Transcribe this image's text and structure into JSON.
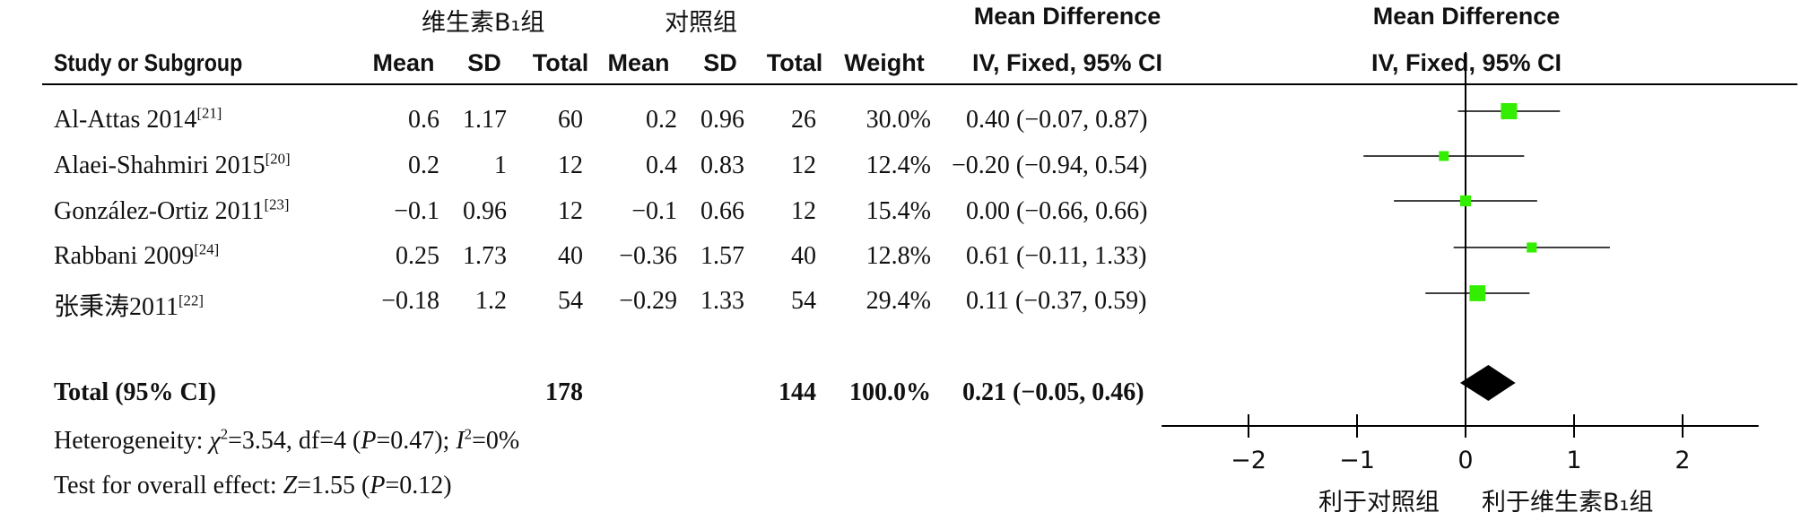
{
  "group_headers": {
    "treatment": "维生素B₁组",
    "control": "对照组"
  },
  "md_header": {
    "line1": "Mean Difference",
    "line2": "IV, Fixed, 95% CI"
  },
  "plot_header": {
    "line1": "Mean Difference",
    "line2": "IV, Fixed, 95% CI"
  },
  "columns": {
    "study": "Study or Subgroup",
    "mean1": "Mean",
    "sd1": "SD",
    "total1": "Total",
    "mean2": "Mean",
    "sd2": "SD",
    "total2": "Total",
    "weight": "Weight"
  },
  "rows": [
    {
      "study": "Al-Attas 2014",
      "ref": "[21]",
      "mean1": "0.6",
      "sd1": "1.17",
      "total1": "60",
      "mean2": "0.2",
      "sd2": "0.96",
      "total2": "26",
      "weight": "30.0%",
      "ci": "0.40 (−0.07, 0.87)"
    },
    {
      "study": "Alaei-Shahmiri 2015",
      "ref": "[20]",
      "mean1": "0.2",
      "sd1": "1",
      "total1": "12",
      "mean2": "0.4",
      "sd2": "0.83",
      "total2": "12",
      "weight": "12.4%",
      "ci": "−0.20 (−0.94, 0.54)"
    },
    {
      "study": "González-Ortiz 2011",
      "ref": "[23]",
      "mean1": "−0.1",
      "sd1": "0.96",
      "total1": "12",
      "mean2": "−0.1",
      "sd2": "0.66",
      "total2": "12",
      "weight": "15.4%",
      "ci": "0.00 (−0.66, 0.66)"
    },
    {
      "study": "Rabbani 2009",
      "ref": "[24]",
      "mean1": "0.25",
      "sd1": "1.73",
      "total1": "40",
      "mean2": "−0.36",
      "sd2": "1.57",
      "total2": "40",
      "weight": "12.8%",
      "ci": "0.61 (−0.11, 1.33)"
    },
    {
      "study": "张秉涛2011",
      "ref": "[22]",
      "mean1": "−0.18",
      "sd1": "1.2",
      "total1": "54",
      "mean2": "−0.29",
      "sd2": "1.33",
      "total2": "54",
      "weight": "29.4%",
      "ci": "0.11 (−0.37, 0.59)"
    }
  ],
  "total": {
    "label": "Total (95% CI)",
    "total1": "178",
    "total2": "144",
    "weight": "100.0%",
    "ci": "0.21 (−0.05, 0.46)"
  },
  "heterogeneity": {
    "prefix": "Heterogeneity: ",
    "chi": "χ",
    "chi_rest": "=3.54, df=4 (",
    "p": "P",
    "p_rest": "=0.47); ",
    "i": "I",
    "i_rest": "=0%"
  },
  "overall": {
    "prefix": "Test for overall effect: ",
    "z": "Z",
    "z_rest": "=1.55 (",
    "p": "P",
    "p_rest": "=0.12)"
  },
  "axis_labels": {
    "left": "利于对照组",
    "right": "利于维生素B₁组"
  },
  "chart_data": {
    "type": "forest",
    "xlim": [
      -2.8,
      2.7
    ],
    "ticks": [
      -2,
      -1,
      0,
      1,
      2
    ],
    "tick_labels": [
      "−2",
      "−1",
      "0",
      "1",
      "2"
    ],
    "studies": [
      {
        "md": 0.4,
        "lo": -0.07,
        "hi": 0.87,
        "weight": 30.0
      },
      {
        "md": -0.2,
        "lo": -0.94,
        "hi": 0.54,
        "weight": 12.4
      },
      {
        "md": 0.0,
        "lo": -0.66,
        "hi": 0.66,
        "weight": 15.4
      },
      {
        "md": 0.61,
        "lo": -0.11,
        "hi": 1.33,
        "weight": 12.8
      },
      {
        "md": 0.11,
        "lo": -0.37,
        "hi": 0.59,
        "weight": 29.4
      }
    ],
    "pooled": {
      "md": 0.21,
      "lo": -0.05,
      "hi": 0.46
    },
    "marker_color": "#33ee00"
  }
}
